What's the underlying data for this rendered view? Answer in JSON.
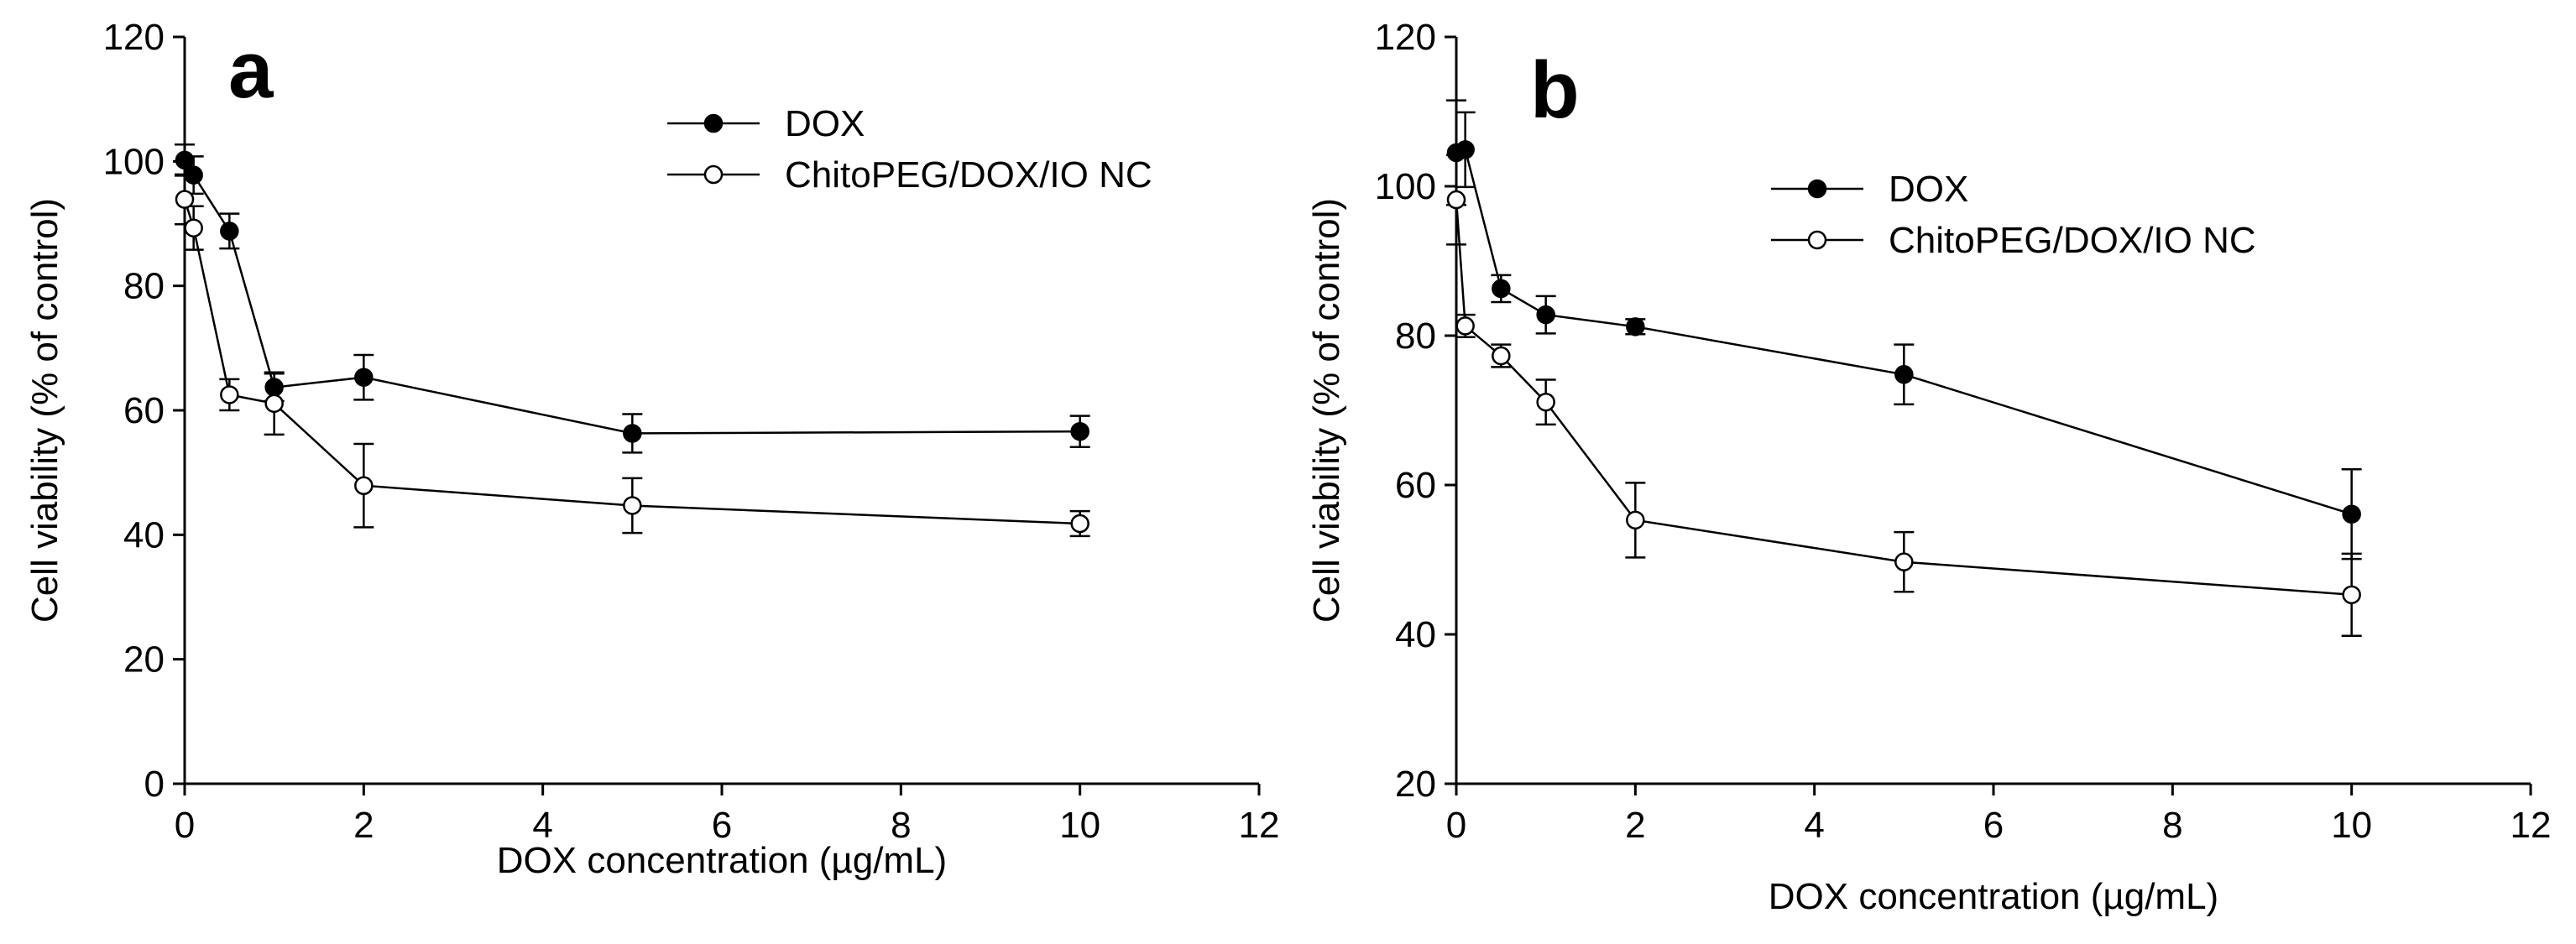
{
  "chart_data": [
    {
      "type": "line",
      "panel_label": "a",
      "xlabel": "DOX concentration (µg/mL)",
      "ylabel": "Cell viability (% of control)",
      "xlim": [
        0,
        12
      ],
      "ylim": [
        0,
        120
      ],
      "xticks": [
        0,
        2,
        4,
        6,
        8,
        10,
        12
      ],
      "yticks": [
        0,
        20,
        40,
        60,
        80,
        100,
        120
      ],
      "xtick_labels": [
        "0",
        "2",
        "4",
        "6",
        "8",
        "10",
        "12"
      ],
      "ytick_labels": [
        "0",
        "20",
        "40",
        "60",
        "80",
        "100",
        "120"
      ],
      "legend_position": "top-right",
      "series": [
        {
          "name": "DOX",
          "marker": "filled",
          "x": [
            0,
            0.1,
            0.5,
            1,
            2,
            5,
            10
          ],
          "y": [
            100.2,
            97.8,
            88.8,
            63.7,
            65.3,
            56.3,
            56.6
          ],
          "err": [
            2.5,
            3.0,
            2.8,
            2.2,
            3.6,
            3.1,
            2.5
          ]
        },
        {
          "name": "ChitoPEG/DOX/IO NC",
          "marker": "open",
          "x": [
            0,
            0.1,
            0.5,
            1,
            2,
            5,
            10
          ],
          "y": [
            93.9,
            89.3,
            62.5,
            61.1,
            47.9,
            44.7,
            41.8
          ],
          "err": [
            4.0,
            3.5,
            2.5,
            5.0,
            6.7,
            4.4,
            2.0
          ]
        }
      ]
    },
    {
      "type": "line",
      "panel_label": "b",
      "xlabel": "DOX concentration (µg/mL)",
      "ylabel": "Cell viability (% of control)",
      "xlim": [
        0,
        12
      ],
      "ylim": [
        20,
        120
      ],
      "xticks": [
        0,
        2,
        4,
        6,
        8,
        10,
        12
      ],
      "yticks": [
        20,
        40,
        60,
        80,
        100,
        120
      ],
      "xtick_labels": [
        "0",
        "2",
        "4",
        "6",
        "8",
        "10",
        "12"
      ],
      "ytick_labels": [
        "20",
        "40",
        "60",
        "80",
        "100",
        "120"
      ],
      "legend_position": "top-right",
      "series": [
        {
          "name": "DOX",
          "marker": "filled",
          "x": [
            0,
            0.1,
            0.5,
            1,
            2,
            5,
            10
          ],
          "y": [
            104.5,
            104.9,
            86.3,
            82.8,
            81.2,
            74.8,
            56.1
          ],
          "err": [
            7.0,
            5.0,
            1.8,
            2.5,
            1.0,
            4.0,
            6.0
          ]
        },
        {
          "name": "ChitoPEG/DOX/IO NC",
          "marker": "open",
          "x": [
            0,
            0.1,
            0.5,
            1,
            2,
            5,
            10
          ],
          "y": [
            98.2,
            81.3,
            77.3,
            71.1,
            55.3,
            49.7,
            45.3
          ],
          "err": [
            6.0,
            1.5,
            1.5,
            3.0,
            5.0,
            4.0,
            5.5
          ]
        }
      ]
    }
  ]
}
